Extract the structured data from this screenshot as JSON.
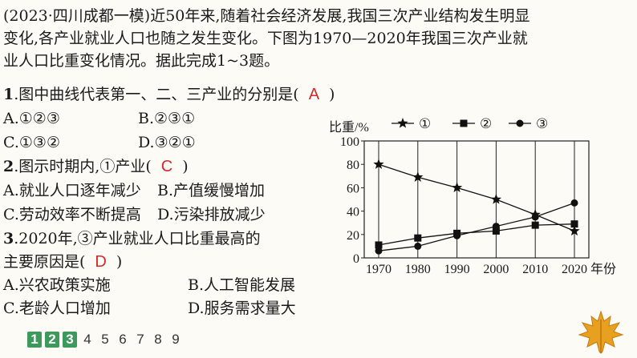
{
  "intro": {
    "line1": "(2023·四川成都一模)近50年来,随着社会经济发展,我国三次产业结构发生明显",
    "line2": "变化,各产业就业人口也随之发生变化。下图为1970—2020年我国三次产业就",
    "line3": "业人口比重变化情况。据此完成1~3题。"
  },
  "q1": {
    "num": "1",
    "text": ".图中曲线代表第一、二、三产业的分别是(",
    "answer": "A",
    "close": ")",
    "options": [
      "A.①②③",
      "B.②③①",
      "C.①③②",
      "D.③②①"
    ]
  },
  "q2": {
    "num": "2",
    "text": ".图示时期内,①产业(",
    "answer": "C",
    "close": ")",
    "options": [
      "A.就业人口逐年减少",
      "B.产值缓慢增加",
      "C.劳动效率不断提高",
      "D.污染排放减少"
    ]
  },
  "q3": {
    "num": "3",
    "text_line1": ".2020年,③产业就业人口比重最高的",
    "text_line2": "主要原因是(",
    "answer": "D",
    "close": ")",
    "options": [
      "A.兴农政策实施",
      "B.人工智能发展",
      "C.老龄人口增加",
      "D.服务需求量大"
    ]
  },
  "chart_data": {
    "type": "line",
    "ylabel": "比重/%",
    "xlabel": "年份",
    "x": [
      1970,
      1980,
      1990,
      2000,
      2010,
      2020
    ],
    "ylim": [
      0,
      100
    ],
    "yticks": [
      0,
      20,
      40,
      60,
      80,
      100
    ],
    "grid": "vertical",
    "legend_position": "top",
    "series": [
      {
        "name": "①",
        "marker": "star",
        "values": [
          80,
          69,
          60,
          50,
          37,
          23
        ]
      },
      {
        "name": "②",
        "marker": "square",
        "values": [
          11,
          17,
          21,
          23,
          28,
          29
        ]
      },
      {
        "name": "③",
        "marker": "circle",
        "values": [
          6,
          10,
          19,
          27,
          35,
          47
        ]
      }
    ]
  },
  "pager": {
    "items": [
      "1",
      "2",
      "3",
      "4",
      "5",
      "6",
      "7",
      "8",
      "9"
    ],
    "done": [
      true,
      true,
      true,
      false,
      false,
      false,
      false,
      false,
      false
    ]
  },
  "colors": {
    "answer": "#d42a2a",
    "done_badge": "#3d9a5c",
    "leaf": "#e8a020"
  }
}
